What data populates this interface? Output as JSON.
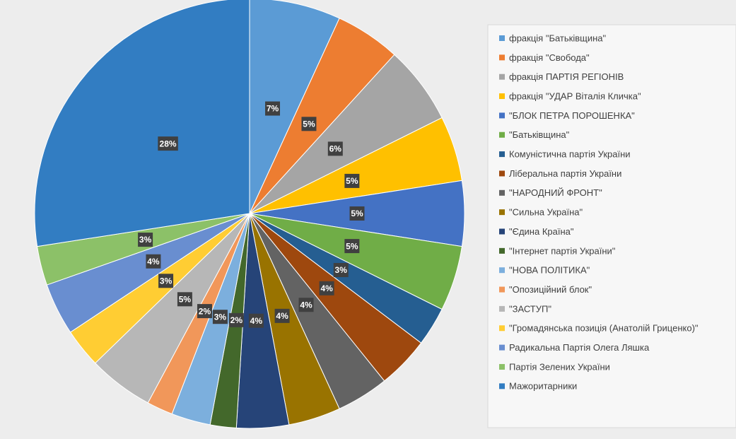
{
  "chart_data": {
    "type": "pie",
    "categories": [
      "фракція \"Батьківщина\"",
      "фракція \"Свобода\"",
      "фракція ПАРТІЯ РЕГІОНІВ",
      "фракція \"УДАР  Віталія Кличка\"",
      "\"БЛОК ПЕТРА ПОРОШЕНКА\"",
      "\"Батьківщина\"",
      "Комуністична партія України",
      "Ліберальна партія України",
      "\"НАРОДНИЙ ФРОНТ\"",
      "\"Сильна Україна\"",
      "\"Єдина Країна\"",
      "\"Інтернет партія України\"",
      "\"НОВА ПОЛІТИКА\"",
      "\"Опозиційний блок\"",
      "\"ЗАСТУП\"",
      "\"Громадянська позиція (Анатолій Гриценко)\"",
      "Радикальна Партія Олега Ляшка",
      "Партія Зелених України",
      "Мажоритарники"
    ],
    "values": [
      7,
      5,
      6,
      5,
      5,
      5,
      3,
      4,
      4,
      4,
      4,
      2,
      3,
      2,
      5,
      3,
      4,
      3,
      28
    ],
    "value_labels": [
      "7%",
      "5%",
      "6%",
      "5%",
      "5%",
      "5%",
      "3%",
      "4%",
      "4%",
      "4%",
      "4%",
      "2%",
      "3%",
      "2%",
      "5%",
      "3%",
      "4%",
      "3%",
      "28%"
    ],
    "colors": [
      "#5b9bd5",
      "#ed7d31",
      "#a5a5a5",
      "#ffc000",
      "#4472c4",
      "#70ad47",
      "#255e91",
      "#9e480e",
      "#636363",
      "#997300",
      "#264478",
      "#43682b",
      "#7cafdd",
      "#f1975a",
      "#b7b7b7",
      "#ffcd33",
      "#698ed0",
      "#8cc168",
      "#327dc2"
    ],
    "legend": "right"
  }
}
